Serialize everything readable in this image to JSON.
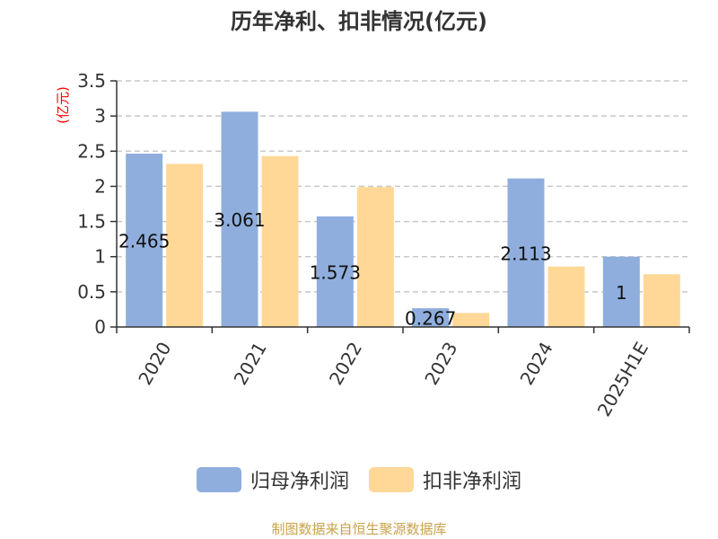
{
  "chart_data": {
    "type": "bar",
    "title": "历年净利、扣非情况(亿元)",
    "ylabel": "(亿元)",
    "xlabel": "",
    "categories": [
      "2020",
      "2021",
      "2022",
      "2023",
      "2024",
      "2025H1E"
    ],
    "ylim": [
      0,
      3.5
    ],
    "yticks": [
      "0",
      "0.5",
      "1",
      "1.5",
      "2",
      "2.5",
      "3",
      "3.5"
    ],
    "grid": true,
    "legend_position": "bottom",
    "series": [
      {
        "name": "归母净利润",
        "color": "#8faedd",
        "values": [
          2.465,
          3.061,
          1.573,
          0.267,
          2.113,
          1
        ],
        "labels": [
          "2.465",
          "3.061",
          "1.573",
          "0.267",
          "2.113",
          "1"
        ]
      },
      {
        "name": "扣非净利润",
        "color": "#ffd898",
        "values": [
          2.32,
          2.43,
          1.99,
          0.2,
          0.86,
          0.75
        ]
      }
    ]
  },
  "footer": "制图数据来自恒生聚源数据库",
  "colors": {
    "ylabel": "#ff0000",
    "axis": "#333333",
    "grid": "#c8c8c8",
    "footer": "#c8a24a"
  }
}
